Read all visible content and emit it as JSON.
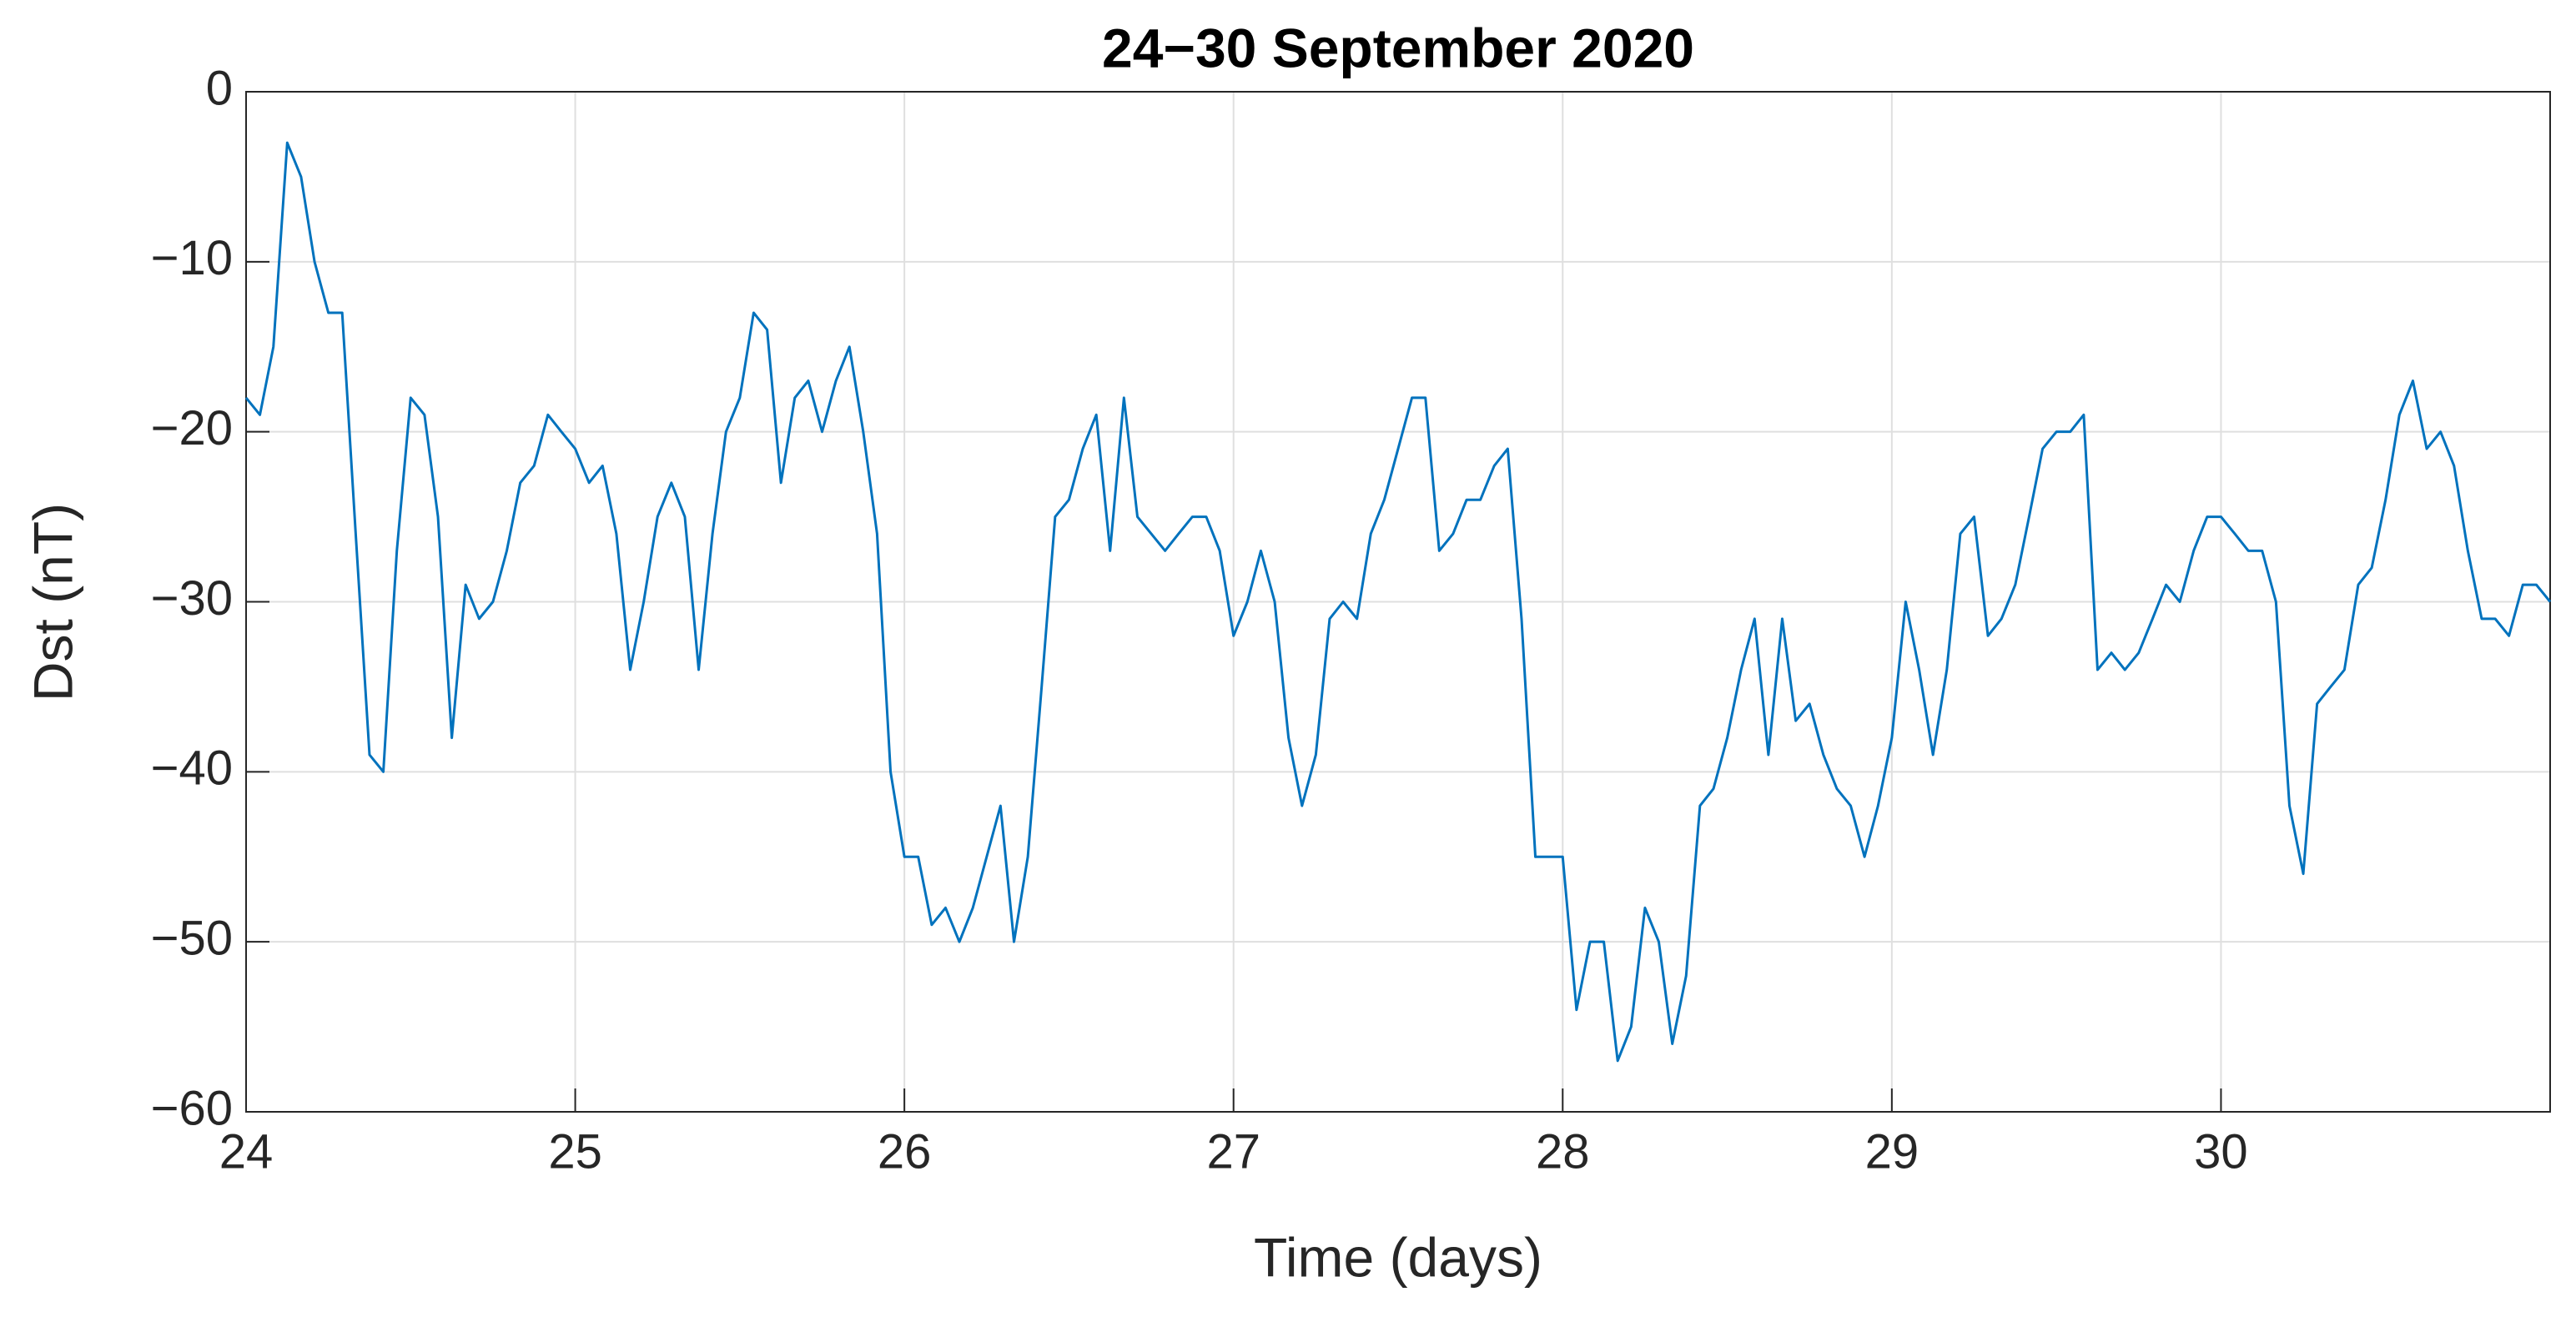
{
  "chart_data": {
    "type": "line",
    "title": "24−30 September 2020",
    "xlabel": "Time (days)",
    "ylabel": "Dst (nT)",
    "xlim": [
      24,
      31
    ],
    "ylim": [
      -60,
      0
    ],
    "xticks": [
      24,
      25,
      26,
      27,
      28,
      29,
      30
    ],
    "yticks": [
      {
        "value": -60,
        "label": "−60"
      },
      {
        "value": -50,
        "label": "−50"
      },
      {
        "value": -40,
        "label": "−40"
      },
      {
        "value": -30,
        "label": "−30"
      },
      {
        "value": -20,
        "label": "−20"
      },
      {
        "value": -10,
        "label": "−10"
      },
      0
    ],
    "grid": true,
    "x": [
      24,
      24.042,
      24.083,
      24.125,
      24.167,
      24.208,
      24.25,
      24.292,
      24.333,
      24.375,
      24.417,
      24.458,
      24.5,
      24.542,
      24.583,
      24.625,
      24.667,
      24.708,
      24.75,
      24.792,
      24.833,
      24.875,
      24.917,
      24.958,
      25,
      25.042,
      25.083,
      25.125,
      25.167,
      25.208,
      25.25,
      25.292,
      25.333,
      25.375,
      25.417,
      25.458,
      25.5,
      25.542,
      25.583,
      25.625,
      25.667,
      25.708,
      25.75,
      25.792,
      25.833,
      25.875,
      25.917,
      25.958,
      26,
      26.042,
      26.083,
      26.125,
      26.167,
      26.208,
      26.25,
      26.292,
      26.333,
      26.375,
      26.417,
      26.458,
      26.5,
      26.542,
      26.583,
      26.625,
      26.667,
      26.708,
      26.75,
      26.792,
      26.833,
      26.875,
      26.917,
      26.958,
      27,
      27.042,
      27.083,
      27.125,
      27.167,
      27.208,
      27.25,
      27.292,
      27.333,
      27.375,
      27.417,
      27.458,
      27.5,
      27.542,
      27.583,
      27.625,
      27.667,
      27.708,
      27.75,
      27.792,
      27.833,
      27.875,
      27.917,
      27.958,
      28,
      28.042,
      28.083,
      28.125,
      28.167,
      28.208,
      28.25,
      28.292,
      28.333,
      28.375,
      28.417,
      28.458,
      28.5,
      28.542,
      28.583,
      28.625,
      28.667,
      28.708,
      28.75,
      28.792,
      28.833,
      28.875,
      28.917,
      28.958,
      29,
      29.042,
      29.083,
      29.125,
      29.167,
      29.208,
      29.25,
      29.292,
      29.333,
      29.375,
      29.417,
      29.458,
      29.5,
      29.542,
      29.583,
      29.625,
      29.667,
      29.708,
      29.75,
      29.792,
      29.833,
      29.875,
      29.917,
      29.958,
      30,
      30.042,
      30.083,
      30.125,
      30.167,
      30.208,
      30.25,
      30.292,
      30.333,
      30.375,
      30.417,
      30.458,
      30.5,
      30.542,
      30.583,
      30.625,
      30.667,
      30.708,
      30.75,
      30.792,
      30.833,
      30.875,
      30.917,
      30.958,
      31
    ],
    "series": [
      {
        "color": "#0072bd",
        "values": [
          -18,
          -19,
          -15,
          -3,
          -5,
          -10,
          -13,
          -13,
          -26,
          -39,
          -40,
          -27,
          -18,
          -19,
          -25,
          -38,
          -29,
          -31,
          -30,
          -27,
          -23,
          -22,
          -19,
          -20,
          -21,
          -23,
          -22,
          -26,
          -34,
          -30,
          -25,
          -23,
          -25,
          -34,
          -26,
          -20,
          -18,
          -13,
          -14,
          -23,
          -18,
          -17,
          -20,
          -17,
          -15,
          -20,
          -26,
          -40,
          -45,
          -45,
          -49,
          -48,
          -50,
          -48,
          -45,
          -42,
          -50,
          -45,
          -35,
          -25,
          -24,
          -21,
          -19,
          -27,
          -18,
          -25,
          -26,
          -27,
          -26,
          -25,
          -25,
          -27,
          -32,
          -30,
          -27,
          -30,
          -38,
          -42,
          -39,
          -31,
          -30,
          -31,
          -26,
          -24,
          -21,
          -18,
          -18,
          -27,
          -26,
          -24,
          -24,
          -22,
          -21,
          -31,
          -45,
          -45,
          -45,
          -54,
          -50,
          -50,
          -57,
          -55,
          -48,
          -50,
          -56,
          -52,
          -42,
          -41,
          -38,
          -34,
          -31,
          -39,
          -31,
          -37,
          -36,
          -39,
          -41,
          -42,
          -45,
          -42,
          -38,
          -30,
          -34,
          -39,
          -34,
          -26,
          -25,
          -32,
          -31,
          -29,
          -25,
          -21,
          -20,
          -20,
          -19,
          -34,
          -33,
          -34,
          -33,
          -31,
          -29,
          -30,
          -27,
          -25,
          -25,
          -26,
          -27,
          -27,
          -30,
          -42,
          -46,
          -36,
          -35,
          -34,
          -29,
          -28,
          -24,
          -19,
          -17,
          -21,
          -20,
          -22,
          -27,
          -31,
          -31,
          -32,
          -29,
          -29,
          -30
        ]
      }
    ]
  }
}
